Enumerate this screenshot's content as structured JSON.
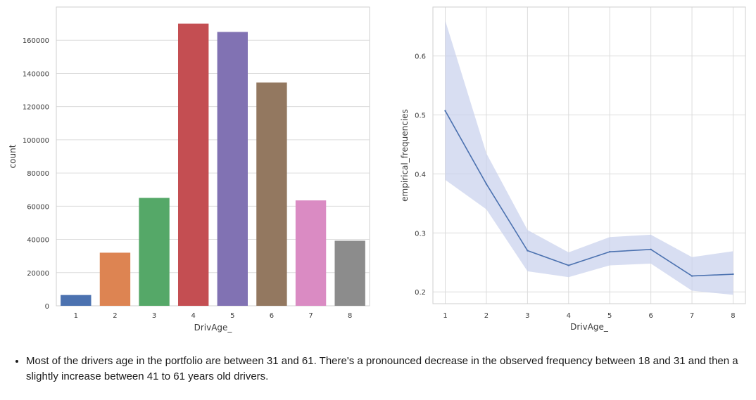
{
  "chart_data": [
    {
      "type": "bar",
      "categories": [
        "1",
        "2",
        "3",
        "4",
        "5",
        "6",
        "7",
        "8"
      ],
      "values": [
        6500,
        32000,
        65000,
        170000,
        165000,
        134500,
        63500,
        39200
      ],
      "colors": [
        "#4c72b0",
        "#dd8452",
        "#55a868",
        "#c44e52",
        "#8172b3",
        "#937860",
        "#da8bc3",
        "#8c8c8c"
      ],
      "title": "",
      "xlabel": "DrivAge_",
      "ylabel": "count",
      "ylim": [
        0,
        170000
      ],
      "yticks": [
        0,
        20000,
        40000,
        60000,
        80000,
        100000,
        120000,
        140000,
        160000
      ],
      "grid": true
    },
    {
      "type": "line",
      "x": [
        1,
        2,
        3,
        4,
        5,
        6,
        7,
        8
      ],
      "series": [
        {
          "values": [
            0.507,
            0.383,
            0.27,
            0.245,
            0.268,
            0.272,
            0.227,
            0.23
          ],
          "ci_lower": [
            0.39,
            0.34,
            0.235,
            0.225,
            0.245,
            0.248,
            0.202,
            0.195
          ],
          "ci_upper": [
            0.66,
            0.435,
            0.305,
            0.267,
            0.293,
            0.297,
            0.259,
            0.269
          ],
          "color": "#4c72b0",
          "band_color": "#c7d0ec"
        }
      ],
      "title": "",
      "xlabel": "DrivAge_",
      "ylabel": "empirical_frequencies",
      "xlim": [
        0.7,
        8.3
      ],
      "ylim": [
        0.18,
        0.683
      ],
      "xticks": [
        1,
        2,
        3,
        4,
        5,
        6,
        7,
        8
      ],
      "yticks": [
        0.2,
        0.3,
        0.4,
        0.5,
        0.6
      ],
      "grid": true
    }
  ],
  "note": {
    "line1": "Most of the drivers age in the portfolio are between 31 and 61. There's a pronounced decrease in the observed frequency between 18 and 31 and then",
    "line2": "a slightly increase between 41 to 61 years old drivers."
  }
}
